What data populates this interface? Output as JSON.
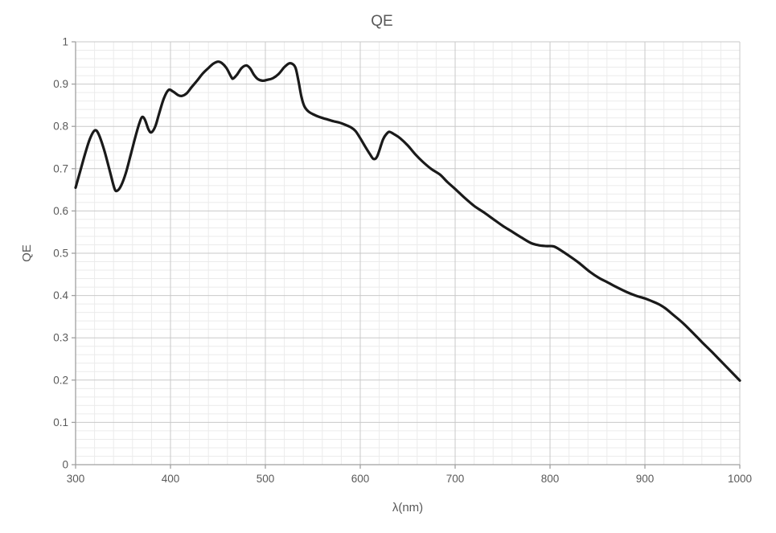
{
  "chart_data": {
    "type": "line",
    "title": "QE",
    "xlabel": "λ(nm)",
    "ylabel": "QE",
    "xlim": [
      300,
      1000
    ],
    "ylim": [
      0,
      1
    ],
    "x_tick_labels": [
      "300",
      "400",
      "500",
      "600",
      "700",
      "800",
      "900",
      "1000"
    ],
    "x_tick_values": [
      300,
      400,
      500,
      600,
      700,
      800,
      900,
      1000
    ],
    "y_tick_labels": [
      "0",
      "0.1",
      "0.2",
      "0.3",
      "0.4",
      "0.5",
      "0.6",
      "0.7",
      "0.8",
      "0.9",
      "1"
    ],
    "y_tick_values": [
      0,
      0.1,
      0.2,
      0.3,
      0.4,
      0.5,
      0.6,
      0.7,
      0.8,
      0.9,
      1
    ],
    "x_minor_step": 20,
    "y_minor_step": 0.02,
    "grid": "major+minor",
    "legend": "none",
    "colors": {
      "line": "#1a1a1a",
      "axis": "#a0a0a0",
      "major_grid": "#c9c9c9",
      "minor_grid": "#ebebeb",
      "text": "#595959",
      "background": "#ffffff"
    },
    "series": [
      {
        "name": "QE",
        "points": [
          [
            300,
            0.655
          ],
          [
            305,
            0.695
          ],
          [
            310,
            0.735
          ],
          [
            315,
            0.77
          ],
          [
            320,
            0.79
          ],
          [
            324,
            0.783
          ],
          [
            330,
            0.745
          ],
          [
            336,
            0.695
          ],
          [
            341,
            0.653
          ],
          [
            344,
            0.648
          ],
          [
            348,
            0.66
          ],
          [
            353,
            0.69
          ],
          [
            358,
            0.732
          ],
          [
            363,
            0.775
          ],
          [
            367,
            0.806
          ],
          [
            370,
            0.822
          ],
          [
            373,
            0.816
          ],
          [
            377,
            0.792
          ],
          [
            380,
            0.786
          ],
          [
            384,
            0.8
          ],
          [
            388,
            0.83
          ],
          [
            393,
            0.866
          ],
          [
            398,
            0.886
          ],
          [
            403,
            0.882
          ],
          [
            408,
            0.874
          ],
          [
            412,
            0.872
          ],
          [
            417,
            0.878
          ],
          [
            422,
            0.892
          ],
          [
            428,
            0.908
          ],
          [
            434,
            0.925
          ],
          [
            440,
            0.938
          ],
          [
            445,
            0.948
          ],
          [
            450,
            0.953
          ],
          [
            454,
            0.95
          ],
          [
            459,
            0.938
          ],
          [
            464,
            0.917
          ],
          [
            466,
            0.913
          ],
          [
            470,
            0.922
          ],
          [
            475,
            0.938
          ],
          [
            480,
            0.944
          ],
          [
            484,
            0.937
          ],
          [
            488,
            0.922
          ],
          [
            492,
            0.912
          ],
          [
            497,
            0.908
          ],
          [
            502,
            0.91
          ],
          [
            508,
            0.914
          ],
          [
            514,
            0.924
          ],
          [
            520,
            0.94
          ],
          [
            525,
            0.949
          ],
          [
            529,
            0.947
          ],
          [
            532,
            0.937
          ],
          [
            535,
            0.906
          ],
          [
            538,
            0.87
          ],
          [
            541,
            0.848
          ],
          [
            545,
            0.836
          ],
          [
            550,
            0.829
          ],
          [
            555,
            0.824
          ],
          [
            560,
            0.82
          ],
          [
            566,
            0.816
          ],
          [
            572,
            0.812
          ],
          [
            578,
            0.809
          ],
          [
            584,
            0.804
          ],
          [
            590,
            0.798
          ],
          [
            595,
            0.789
          ],
          [
            600,
            0.772
          ],
          [
            605,
            0.753
          ],
          [
            610,
            0.735
          ],
          [
            614,
            0.723
          ],
          [
            618,
            0.73
          ],
          [
            624,
            0.769
          ],
          [
            628,
            0.783
          ],
          [
            631,
            0.787
          ],
          [
            636,
            0.781
          ],
          [
            642,
            0.772
          ],
          [
            650,
            0.755
          ],
          [
            658,
            0.734
          ],
          [
            666,
            0.716
          ],
          [
            675,
            0.699
          ],
          [
            684,
            0.686
          ],
          [
            692,
            0.668
          ],
          [
            700,
            0.652
          ],
          [
            710,
            0.631
          ],
          [
            720,
            0.612
          ],
          [
            730,
            0.597
          ],
          [
            740,
            0.581
          ],
          [
            750,
            0.565
          ],
          [
            760,
            0.551
          ],
          [
            770,
            0.537
          ],
          [
            780,
            0.524
          ],
          [
            788,
            0.519
          ],
          [
            796,
            0.517
          ],
          [
            804,
            0.516
          ],
          [
            812,
            0.506
          ],
          [
            820,
            0.494
          ],
          [
            830,
            0.478
          ],
          [
            842,
            0.456
          ],
          [
            852,
            0.441
          ],
          [
            860,
            0.432
          ],
          [
            870,
            0.42
          ],
          [
            881,
            0.408
          ],
          [
            890,
            0.4
          ],
          [
            900,
            0.393
          ],
          [
            908,
            0.386
          ],
          [
            915,
            0.379
          ],
          [
            922,
            0.369
          ],
          [
            930,
            0.354
          ],
          [
            940,
            0.335
          ],
          [
            950,
            0.313
          ],
          [
            960,
            0.29
          ],
          [
            970,
            0.268
          ],
          [
            980,
            0.245
          ],
          [
            990,
            0.222
          ],
          [
            1000,
            0.199
          ]
        ]
      }
    ]
  }
}
